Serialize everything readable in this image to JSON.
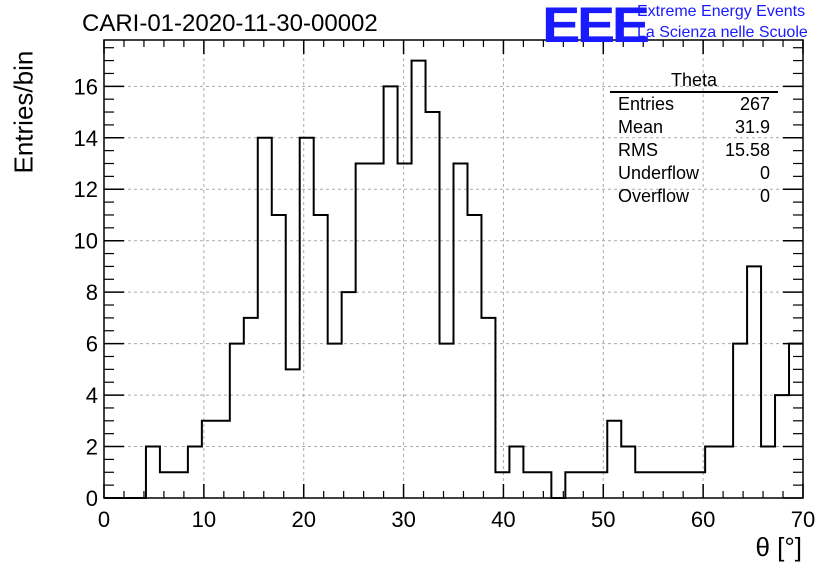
{
  "header": {
    "title": "CARI-01-2020-11-30-00002",
    "logo_text": "EEE",
    "logo_line1": "Extreme Energy Events",
    "logo_line2": "La Scienza nelle Scuole"
  },
  "stats_box": {
    "name": "Theta",
    "rows": [
      {
        "label": "Entries",
        "value": "267"
      },
      {
        "label": "Mean",
        "value": "31.9"
      },
      {
        "label": "RMS",
        "value": "15.58"
      },
      {
        "label": "Underflow",
        "value": "0"
      },
      {
        "label": "Overflow",
        "value": "0"
      }
    ]
  },
  "chart_data": {
    "type": "histogram",
    "title": "CARI-01-2020-11-30-00002",
    "xlabel": "θ [°]",
    "ylabel": "Entries/bin",
    "xlim": [
      0,
      70
    ],
    "ylim": [
      0,
      17.8
    ],
    "grid": true,
    "bin_width": 1.4,
    "bin_edges_start": 0,
    "values": [
      0,
      0,
      0,
      2,
      1,
      1,
      2,
      3,
      3,
      6,
      7,
      14,
      11,
      5,
      14,
      11,
      6,
      8,
      13,
      13,
      16,
      13,
      17,
      15,
      6,
      13,
      11,
      7,
      1,
      2,
      1,
      1,
      0,
      1,
      1,
      1,
      3,
      2,
      1,
      1,
      1,
      1,
      1,
      2,
      2,
      6,
      9,
      2,
      4,
      6
    ],
    "x_ticks": [
      "0",
      "10",
      "20",
      "30",
      "40",
      "50",
      "60",
      "70"
    ],
    "y_ticks": [
      "0",
      "2",
      "4",
      "6",
      "8",
      "10",
      "12",
      "14",
      "16"
    ],
    "colors": {
      "line": "#000000",
      "grid": "#aaaaaa",
      "logo": "#1a1aff"
    }
  }
}
